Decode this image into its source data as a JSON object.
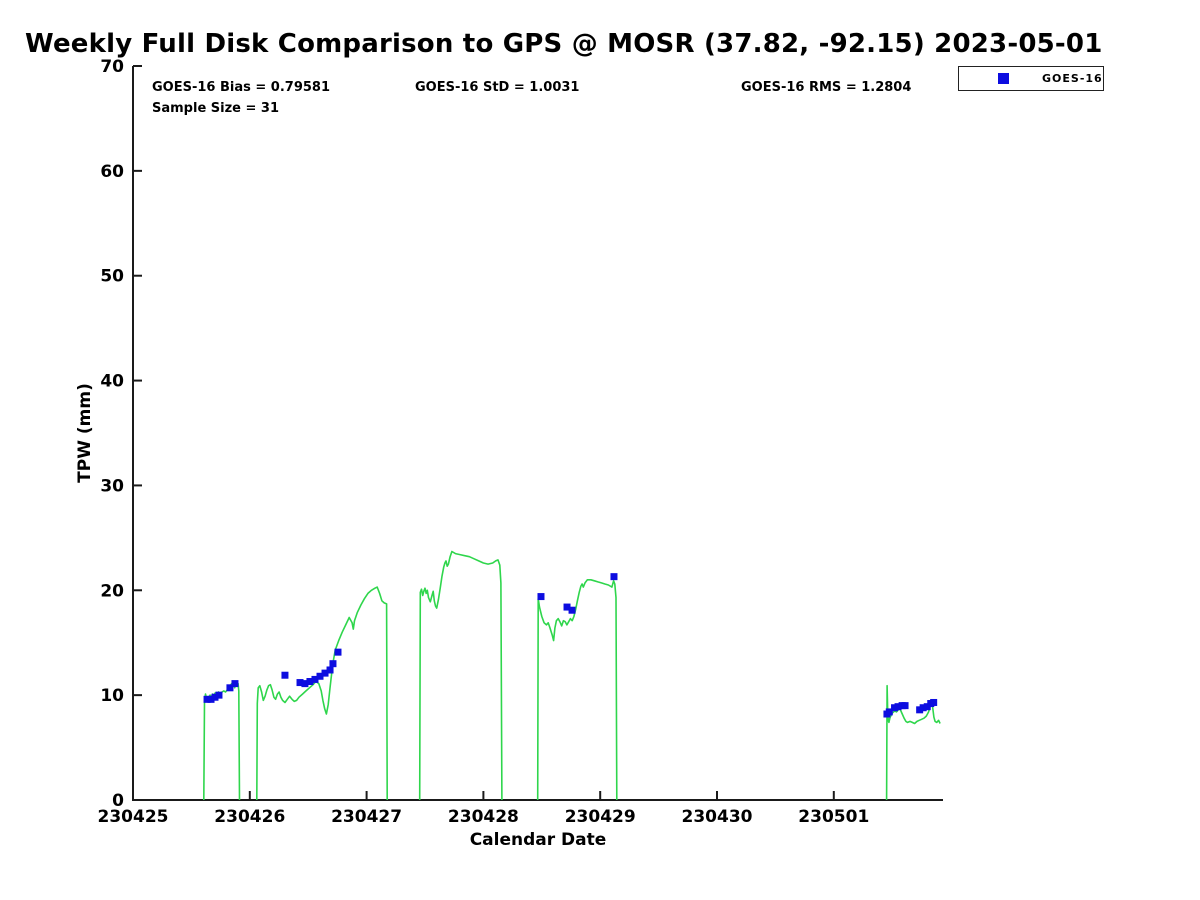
{
  "title": "Weekly Full Disk Comparison to GPS @ MOSR (37.82, -92.15) 2023-05-01",
  "stats": {
    "bias": "GOES-16 Bias = 0.79581",
    "std": "GOES-16 StD = 1.0031",
    "rms": "GOES-16 RMS = 1.2804",
    "sample_size": "Sample Size = 31"
  },
  "legend": {
    "entries": [
      {
        "label": "GOES-16",
        "marker": "square",
        "color": "#0d0de0"
      }
    ]
  },
  "colors": {
    "gps_line": "#2fd64c",
    "goes16_marker": "#0d0de0",
    "axis": "#1a1a1a"
  },
  "chart_data": {
    "type": "line+scatter",
    "title": "Weekly Full Disk Comparison to GPS @ MOSR (37.82, -92.15) 2023-05-01",
    "xlabel": "Calendar Date",
    "ylabel": "TPW (mm)",
    "x_tick_labels": [
      "230425",
      "230426",
      "230427",
      "230428",
      "230429",
      "230430",
      "230501"
    ],
    "x_unit": "days since 230425 tick (ticks at integer offsets 0-6)",
    "xlim_days": [
      0,
      6.93
    ],
    "y_ticks": [
      0,
      10,
      20,
      30,
      40,
      50,
      60,
      70
    ],
    "ylim": [
      0,
      70
    ],
    "grid": false,
    "legend_position": "top-right-outside",
    "series": [
      {
        "name": "GPS TPW",
        "type": "line",
        "color": "#2fd64c",
        "segments": [
          [
            [
              0.606,
              0
            ],
            [
              0.612,
              9.4
            ],
            [
              0.621,
              10.1
            ],
            [
              0.63,
              9.7
            ],
            [
              0.64,
              9.5
            ],
            [
              0.649,
              9.8
            ],
            [
              0.66,
              10.0
            ],
            [
              0.67,
              9.8
            ],
            [
              0.681,
              10.1
            ],
            [
              0.692,
              10.0
            ],
            [
              0.704,
              10.2
            ],
            [
              0.718,
              10.0
            ],
            [
              0.732,
              10.3
            ],
            [
              0.747,
              10.1
            ],
            [
              0.762,
              10.3
            ],
            [
              0.777,
              10.4
            ],
            [
              0.792,
              10.3
            ],
            [
              0.807,
              10.5
            ],
            [
              0.822,
              10.7
            ],
            [
              0.837,
              11.0
            ],
            [
              0.852,
              11.2
            ],
            [
              0.862,
              11.3
            ],
            [
              0.871,
              10.7
            ],
            [
              0.88,
              11.1
            ],
            [
              0.89,
              11.0
            ],
            [
              0.9,
              11.1
            ],
            [
              0.906,
              10.4
            ],
            [
              0.912,
              0
            ]
          ],
          [
            [
              1.06,
              0
            ],
            [
              1.064,
              9.2
            ],
            [
              1.072,
              10.7
            ],
            [
              1.086,
              10.9
            ],
            [
              1.101,
              10.3
            ],
            [
              1.116,
              9.5
            ],
            [
              1.131,
              9.9
            ],
            [
              1.146,
              10.5
            ],
            [
              1.161,
              10.9
            ],
            [
              1.176,
              11.0
            ],
            [
              1.191,
              10.5
            ],
            [
              1.206,
              9.8
            ],
            [
              1.221,
              9.6
            ],
            [
              1.236,
              10.1
            ],
            [
              1.251,
              10.3
            ],
            [
              1.266,
              9.8
            ],
            [
              1.281,
              9.5
            ],
            [
              1.301,
              9.3
            ],
            [
              1.321,
              9.6
            ],
            [
              1.341,
              9.9
            ],
            [
              1.361,
              9.6
            ],
            [
              1.381,
              9.4
            ],
            [
              1.401,
              9.5
            ],
            [
              1.421,
              9.8
            ],
            [
              1.451,
              10.1
            ],
            [
              1.481,
              10.4
            ],
            [
              1.511,
              10.7
            ],
            [
              1.541,
              11.0
            ],
            [
              1.566,
              11.3
            ],
            [
              1.591,
              11.1
            ],
            [
              1.611,
              10.4
            ],
            [
              1.626,
              9.5
            ],
            [
              1.641,
              8.7
            ],
            [
              1.656,
              8.2
            ],
            [
              1.671,
              9.1
            ],
            [
              1.686,
              10.6
            ],
            [
              1.701,
              12.1
            ],
            [
              1.716,
              13.3
            ],
            [
              1.731,
              14.3
            ],
            [
              1.761,
              15.2
            ],
            [
              1.791,
              16.0
            ],
            [
              1.821,
              16.7
            ],
            [
              1.851,
              17.4
            ],
            [
              1.876,
              16.9
            ],
            [
              1.886,
              16.3
            ],
            [
              1.896,
              17.1
            ],
            [
              1.921,
              17.9
            ],
            [
              1.951,
              18.6
            ],
            [
              1.981,
              19.2
            ],
            [
              2.011,
              19.7
            ],
            [
              2.041,
              20.0
            ],
            [
              2.071,
              20.2
            ],
            [
              2.091,
              20.3
            ],
            [
              2.111,
              19.7
            ],
            [
              2.131,
              19.0
            ],
            [
              2.151,
              18.8
            ],
            [
              2.171,
              18.7
            ],
            [
              2.176,
              0
            ]
          ],
          [
            [
              2.455,
              0
            ],
            [
              2.46,
              19.8
            ],
            [
              2.47,
              20.1
            ],
            [
              2.48,
              19.5
            ],
            [
              2.49,
              19.9
            ],
            [
              2.5,
              20.2
            ],
            [
              2.51,
              19.7
            ],
            [
              2.52,
              20.0
            ],
            [
              2.53,
              19.3
            ],
            [
              2.545,
              18.9
            ],
            [
              2.56,
              19.5
            ],
            [
              2.57,
              19.9
            ],
            [
              2.58,
              19.0
            ],
            [
              2.59,
              18.5
            ],
            [
              2.6,
              18.3
            ],
            [
              2.615,
              19.1
            ],
            [
              2.63,
              20.2
            ],
            [
              2.645,
              21.3
            ],
            [
              2.66,
              22.2
            ],
            [
              2.67,
              22.6
            ],
            [
              2.68,
              22.8
            ],
            [
              2.69,
              22.3
            ],
            [
              2.7,
              22.5
            ],
            [
              2.715,
              23.2
            ],
            [
              2.73,
              23.7
            ],
            [
              2.76,
              23.5
            ],
            [
              2.8,
              23.4
            ],
            [
              2.84,
              23.3
            ],
            [
              2.88,
              23.2
            ],
            [
              2.92,
              23.0
            ],
            [
              2.96,
              22.8
            ],
            [
              3.0,
              22.6
            ],
            [
              3.04,
              22.5
            ],
            [
              3.08,
              22.6
            ],
            [
              3.105,
              22.8
            ],
            [
              3.125,
              22.9
            ],
            [
              3.14,
              22.4
            ],
            [
              3.15,
              20.7
            ],
            [
              3.158,
              0
            ]
          ],
          [
            [
              3.465,
              0
            ],
            [
              3.469,
              19.2
            ],
            [
              3.48,
              18.4
            ],
            [
              3.5,
              17.5
            ],
            [
              3.52,
              16.9
            ],
            [
              3.54,
              16.7
            ],
            [
              3.555,
              16.9
            ],
            [
              3.57,
              16.4
            ],
            [
              3.59,
              15.7
            ],
            [
              3.601,
              15.2
            ],
            [
              3.612,
              16.4
            ],
            [
              3.625,
              17.1
            ],
            [
              3.64,
              17.3
            ],
            [
              3.655,
              17.0
            ],
            [
              3.67,
              16.6
            ],
            [
              3.685,
              17.1
            ],
            [
              3.7,
              17.0
            ],
            [
              3.715,
              16.7
            ],
            [
              3.73,
              17.0
            ],
            [
              3.745,
              17.3
            ],
            [
              3.76,
              17.1
            ],
            [
              3.775,
              17.5
            ],
            [
              3.79,
              18.2
            ],
            [
              3.805,
              19.0
            ],
            [
              3.82,
              19.8
            ],
            [
              3.835,
              20.4
            ],
            [
              3.845,
              20.6
            ],
            [
              3.855,
              20.3
            ],
            [
              3.87,
              20.7
            ],
            [
              3.89,
              21.0
            ],
            [
              3.92,
              21.0
            ],
            [
              3.95,
              20.9
            ],
            [
              3.98,
              20.8
            ],
            [
              4.01,
              20.7
            ],
            [
              4.04,
              20.6
            ],
            [
              4.07,
              20.5
            ],
            [
              4.1,
              20.3
            ],
            [
              4.115,
              20.9
            ],
            [
              4.125,
              20.6
            ],
            [
              4.135,
              19.3
            ],
            [
              4.142,
              0
            ]
          ],
          [
            [
              6.452,
              0
            ],
            [
              6.456,
              10.9
            ],
            [
              6.461,
              8.8
            ],
            [
              6.466,
              7.6
            ],
            [
              6.472,
              7.4
            ],
            [
              6.482,
              7.9
            ],
            [
              6.502,
              8.3
            ],
            [
              6.522,
              8.5
            ],
            [
              6.537,
              8.4
            ],
            [
              6.552,
              8.6
            ],
            [
              6.567,
              8.7
            ],
            [
              6.582,
              8.3
            ],
            [
              6.602,
              7.8
            ],
            [
              6.617,
              7.5
            ],
            [
              6.632,
              7.4
            ],
            [
              6.652,
              7.5
            ],
            [
              6.672,
              7.4
            ],
            [
              6.692,
              7.3
            ],
            [
              6.712,
              7.5
            ],
            [
              6.732,
              7.6
            ],
            [
              6.752,
              7.7
            ],
            [
              6.772,
              7.8
            ],
            [
              6.792,
              8.0
            ],
            [
              6.812,
              8.4
            ],
            [
              6.827,
              9.0
            ],
            [
              6.837,
              9.5
            ],
            [
              6.847,
              8.8
            ],
            [
              6.857,
              7.9
            ],
            [
              6.867,
              7.5
            ],
            [
              6.882,
              7.4
            ],
            [
              6.897,
              7.6
            ],
            [
              6.91,
              7.3
            ]
          ]
        ]
      },
      {
        "name": "GOES-16",
        "type": "scatter",
        "marker": "square",
        "color": "#0d0de0",
        "points": [
          [
            0.634,
            9.6
          ],
          [
            0.668,
            9.6
          ],
          [
            0.702,
            9.8
          ],
          [
            0.736,
            10.0
          ],
          [
            0.83,
            10.7
          ],
          [
            0.873,
            11.1
          ],
          [
            1.301,
            11.9
          ],
          [
            1.43,
            11.2
          ],
          [
            1.472,
            11.1
          ],
          [
            1.515,
            11.3
          ],
          [
            1.558,
            11.5
          ],
          [
            1.601,
            11.8
          ],
          [
            1.644,
            12.1
          ],
          [
            1.687,
            12.4
          ],
          [
            1.712,
            13.0
          ],
          [
            1.755,
            14.1
          ],
          [
            3.493,
            19.4
          ],
          [
            3.716,
            18.4
          ],
          [
            3.759,
            18.1
          ],
          [
            4.118,
            21.3
          ],
          [
            6.455,
            8.2
          ],
          [
            6.475,
            8.4
          ],
          [
            6.52,
            8.8
          ],
          [
            6.55,
            8.9
          ],
          [
            6.585,
            9.0
          ],
          [
            6.61,
            9.0
          ],
          [
            6.735,
            8.6
          ],
          [
            6.765,
            8.8
          ],
          [
            6.8,
            8.9
          ],
          [
            6.83,
            9.2
          ],
          [
            6.855,
            9.3
          ]
        ]
      }
    ]
  }
}
